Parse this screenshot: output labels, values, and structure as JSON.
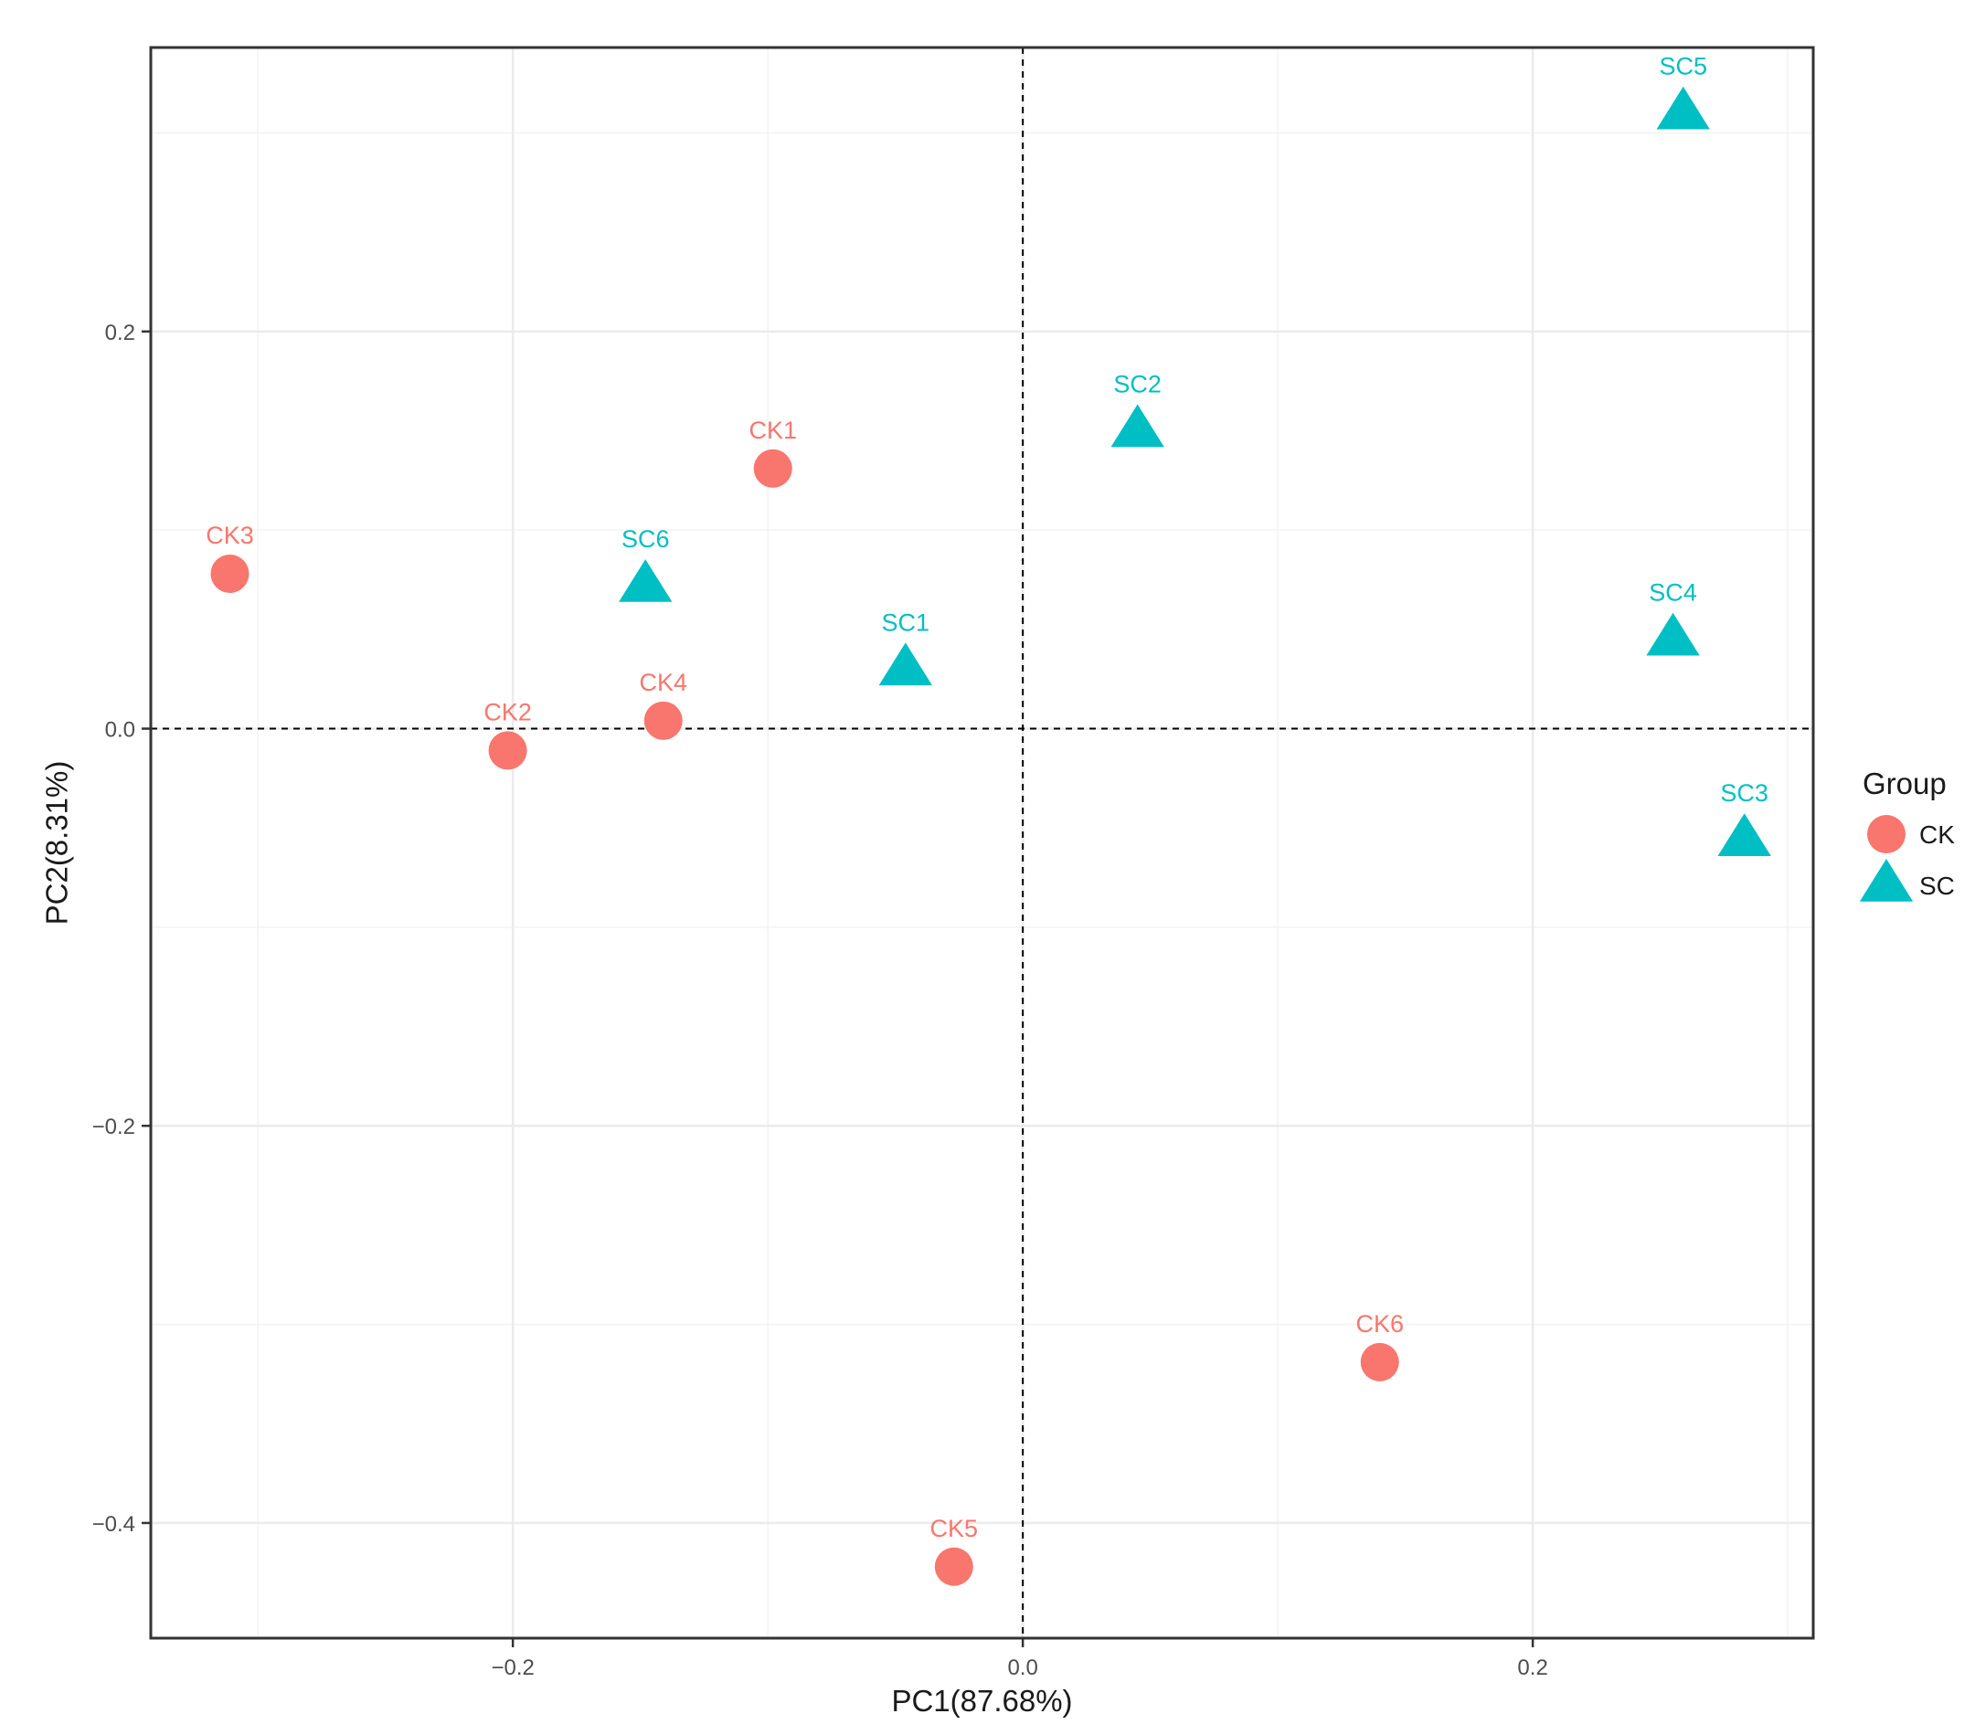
{
  "chart_data": {
    "type": "scatter",
    "xlabel": "PC1(87.68%)",
    "ylabel": "PC2(8.31%)",
    "xlim": [
      -0.342,
      0.31
    ],
    "ylim": [
      -0.458,
      0.343
    ],
    "x_ticks": [
      -0.2,
      0.0,
      0.2
    ],
    "x_tick_labels": [
      "−0.2",
      "0.0",
      "0.2"
    ],
    "y_ticks": [
      0.2,
      0.0,
      -0.2,
      -0.4
    ],
    "y_tick_labels": [
      "0.2",
      "0.0",
      "−0.2",
      "−0.4"
    ],
    "grid": true,
    "reference_lines": {
      "x": 0,
      "y": 0,
      "style": "dashed"
    },
    "legend": {
      "title": "Group",
      "position": "right"
    },
    "series": [
      {
        "name": "CK",
        "color": "#F8766D",
        "marker": "circle",
        "points": [
          {
            "label": "CK1",
            "x": -0.098,
            "y": 0.131
          },
          {
            "label": "CK2",
            "x": -0.202,
            "y": -0.011
          },
          {
            "label": "CK3",
            "x": -0.311,
            "y": 0.078
          },
          {
            "label": "CK4",
            "x": -0.141,
            "y": 0.004
          },
          {
            "label": "CK5",
            "x": -0.027,
            "y": -0.422
          },
          {
            "label": "CK6",
            "x": 0.14,
            "y": -0.319
          }
        ]
      },
      {
        "name": "SC",
        "color": "#00BFC4",
        "marker": "triangle",
        "points": [
          {
            "label": "SC1",
            "x": -0.046,
            "y": 0.03
          },
          {
            "label": "SC2",
            "x": 0.045,
            "y": 0.15
          },
          {
            "label": "SC3",
            "x": 0.283,
            "y": -0.056
          },
          {
            "label": "SC4",
            "x": 0.255,
            "y": 0.045
          },
          {
            "label": "SC5",
            "x": 0.259,
            "y": 0.31
          },
          {
            "label": "SC6",
            "x": -0.148,
            "y": 0.072
          }
        ]
      }
    ]
  }
}
